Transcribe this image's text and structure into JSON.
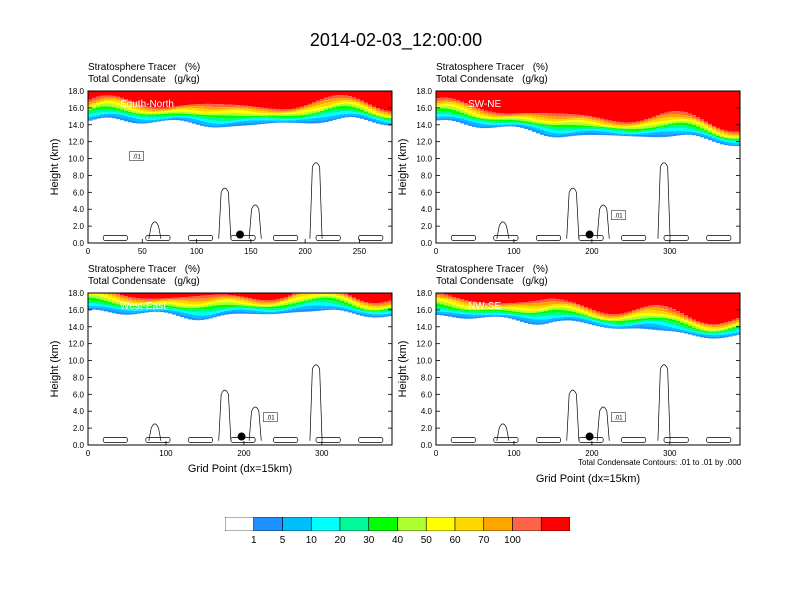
{
  "title": "2014-02-03_12:00:00",
  "header_line1": "Stratosphere Tracer   (%)",
  "header_line2": "Total Condensate   (g/kg)",
  "ylabel": "Height (km)",
  "xlabel": "Grid Point (dx=15km)",
  "contour_note": "Total Condensate Contours: .01 to .01 by .000",
  "contour_label": ".01",
  "colors": {
    "levels": [
      "#ffffff",
      "#1e90ff",
      "#00bfff",
      "#00ffff",
      "#00fa9a",
      "#00ff00",
      "#adff2f",
      "#ffff00",
      "#ffd700",
      "#ffa500",
      "#ff6347",
      "#ff0000"
    ]
  },
  "colorbar": {
    "labels": [
      "1",
      "5",
      "10",
      "20",
      "30",
      "40",
      "50",
      "60",
      "70",
      "100"
    ]
  },
  "chart_data": [
    {
      "type": "heatmap",
      "name": "South-North",
      "xlim": [
        0,
        280
      ],
      "ylim": [
        0,
        18
      ],
      "xticks": [
        0,
        50,
        100,
        150,
        200,
        250
      ],
      "yticks": [
        0.0,
        2.0,
        4.0,
        6.0,
        8.0,
        10.0,
        12.0,
        14.0,
        16.0,
        18.0
      ],
      "marker_x": 140,
      "marker_y": 1.0,
      "tropopause_km": 14.2
    },
    {
      "type": "heatmap",
      "name": "SW-NE",
      "xlim": [
        0,
        390
      ],
      "ylim": [
        0,
        18
      ],
      "xticks": [
        0,
        100,
        200,
        300
      ],
      "yticks": [
        0.0,
        2.0,
        4.0,
        6.0,
        8.0,
        10.0,
        12.0,
        14.0,
        16.0,
        18.0
      ],
      "marker_x": 197,
      "marker_y": 1.0,
      "tropopause_km": 14.0
    },
    {
      "type": "heatmap",
      "name": "West-East",
      "xlim": [
        0,
        390
      ],
      "ylim": [
        0,
        18
      ],
      "xticks": [
        0,
        100,
        200,
        300
      ],
      "yticks": [
        0.0,
        2.0,
        4.0,
        6.0,
        8.0,
        10.0,
        12.0,
        14.0,
        16.0,
        18.0
      ],
      "marker_x": 197,
      "marker_y": 1.0,
      "tropopause_km": 15.5
    },
    {
      "type": "heatmap",
      "name": "NW-SE",
      "xlim": [
        0,
        390
      ],
      "ylim": [
        0,
        18
      ],
      "xticks": [
        0,
        100,
        200,
        300
      ],
      "yticks": [
        0.0,
        2.0,
        4.0,
        6.0,
        8.0,
        10.0,
        12.0,
        14.0,
        16.0,
        18.0
      ],
      "marker_x": 197,
      "marker_y": 1.0,
      "tropopause_km": 15.0
    }
  ]
}
